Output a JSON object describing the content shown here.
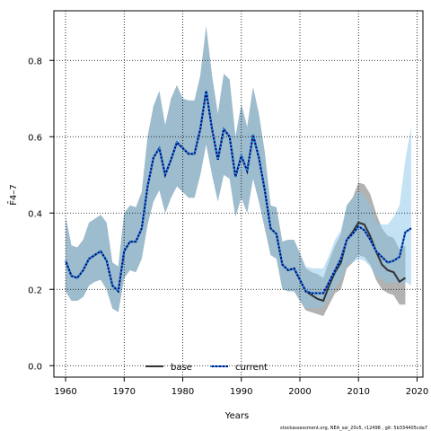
{
  "chart_data": {
    "type": "line",
    "xlabel": "Years",
    "ylabel": "F̄4–7",
    "xlim": [
      1958,
      2021
    ],
    "ylim": [
      -0.03,
      0.93
    ],
    "x_ticks": [
      1960,
      1970,
      1980,
      1990,
      2000,
      2010,
      2020
    ],
    "y_ticks": [
      0.0,
      0.2,
      0.4,
      0.6,
      0.8
    ],
    "y_tick_labels": [
      "0.0",
      "0.2",
      "0.4",
      "0.6",
      "0.8"
    ],
    "grid": true,
    "legend_placement": "bottom-center",
    "colors": {
      "base_line": "#333333",
      "base_band": "#7f7f7f",
      "current_line": "#000080",
      "current_dot": "#1f8fd6",
      "current_band": "#87c5ea"
    },
    "series": [
      {
        "name": "base",
        "line_style": "solid",
        "x": [
          1960,
          1961,
          1962,
          1963,
          1964,
          1965,
          1966,
          1967,
          1968,
          1969,
          1970,
          1971,
          1972,
          1973,
          1974,
          1975,
          1976,
          1977,
          1978,
          1979,
          1980,
          1981,
          1982,
          1983,
          1984,
          1985,
          1986,
          1987,
          1988,
          1989,
          1990,
          1991,
          1992,
          1993,
          1994,
          1995,
          1996,
          1997,
          1998,
          1999,
          2000,
          2001,
          2002,
          2003,
          2004,
          2005,
          2006,
          2007,
          2008,
          2009,
          2010,
          2011,
          2012,
          2013,
          2014,
          2015,
          2016,
          2017,
          2018
        ],
        "values": [
          0.275,
          0.235,
          0.23,
          0.25,
          0.28,
          0.29,
          0.3,
          0.275,
          0.21,
          0.195,
          0.3,
          0.325,
          0.325,
          0.36,
          0.47,
          0.545,
          0.57,
          0.5,
          0.54,
          0.585,
          0.57,
          0.555,
          0.555,
          0.62,
          0.72,
          0.62,
          0.54,
          0.62,
          0.6,
          0.495,
          0.55,
          0.51,
          0.605,
          0.545,
          0.46,
          0.36,
          0.345,
          0.265,
          0.25,
          0.255,
          0.225,
          0.195,
          0.185,
          0.175,
          0.17,
          0.21,
          0.245,
          0.27,
          0.33,
          0.35,
          0.375,
          0.37,
          0.34,
          0.3,
          0.265,
          0.25,
          0.245,
          0.22,
          0.23
        ],
        "upper": [
          0.39,
          0.315,
          0.31,
          0.33,
          0.375,
          0.385,
          0.395,
          0.375,
          0.27,
          0.26,
          0.4,
          0.42,
          0.415,
          0.455,
          0.6,
          0.68,
          0.72,
          0.63,
          0.7,
          0.735,
          0.7,
          0.695,
          0.695,
          0.76,
          0.89,
          0.76,
          0.66,
          0.765,
          0.75,
          0.6,
          0.685,
          0.625,
          0.73,
          0.66,
          0.56,
          0.42,
          0.415,
          0.325,
          0.33,
          0.33,
          0.295,
          0.255,
          0.245,
          0.24,
          0.23,
          0.275,
          0.315,
          0.345,
          0.42,
          0.44,
          0.48,
          0.475,
          0.45,
          0.4,
          0.36,
          0.34,
          0.335,
          0.305,
          0.315
        ],
        "lower": [
          0.195,
          0.17,
          0.17,
          0.18,
          0.21,
          0.22,
          0.225,
          0.2,
          0.15,
          0.14,
          0.23,
          0.25,
          0.245,
          0.28,
          0.37,
          0.43,
          0.46,
          0.4,
          0.44,
          0.47,
          0.455,
          0.44,
          0.44,
          0.5,
          0.58,
          0.5,
          0.43,
          0.5,
          0.49,
          0.39,
          0.44,
          0.4,
          0.49,
          0.43,
          0.36,
          0.29,
          0.28,
          0.2,
          0.195,
          0.195,
          0.17,
          0.145,
          0.14,
          0.135,
          0.13,
          0.16,
          0.19,
          0.2,
          0.255,
          0.27,
          0.29,
          0.285,
          0.265,
          0.225,
          0.2,
          0.19,
          0.185,
          0.16,
          0.16
        ]
      },
      {
        "name": "current",
        "line_style": "dotted",
        "x": [
          1960,
          1961,
          1962,
          1963,
          1964,
          1965,
          1966,
          1967,
          1968,
          1969,
          1970,
          1971,
          1972,
          1973,
          1974,
          1975,
          1976,
          1977,
          1978,
          1979,
          1980,
          1981,
          1982,
          1983,
          1984,
          1985,
          1986,
          1987,
          1988,
          1989,
          1990,
          1991,
          1992,
          1993,
          1994,
          1995,
          1996,
          1997,
          1998,
          1999,
          2000,
          2001,
          2002,
          2003,
          2004,
          2005,
          2006,
          2007,
          2008,
          2009,
          2010,
          2011,
          2012,
          2013,
          2014,
          2015,
          2016,
          2017,
          2018,
          2019
        ],
        "values": [
          0.275,
          0.235,
          0.23,
          0.25,
          0.28,
          0.29,
          0.3,
          0.275,
          0.21,
          0.195,
          0.3,
          0.325,
          0.325,
          0.36,
          0.47,
          0.545,
          0.57,
          0.5,
          0.54,
          0.585,
          0.57,
          0.555,
          0.555,
          0.62,
          0.72,
          0.62,
          0.54,
          0.62,
          0.6,
          0.495,
          0.55,
          0.51,
          0.605,
          0.545,
          0.46,
          0.36,
          0.345,
          0.265,
          0.25,
          0.255,
          0.225,
          0.195,
          0.19,
          0.19,
          0.19,
          0.22,
          0.25,
          0.28,
          0.33,
          0.345,
          0.365,
          0.355,
          0.33,
          0.3,
          0.285,
          0.27,
          0.275,
          0.285,
          0.35,
          0.36
        ],
        "upper": [
          0.39,
          0.315,
          0.31,
          0.33,
          0.375,
          0.385,
          0.395,
          0.375,
          0.27,
          0.26,
          0.4,
          0.42,
          0.415,
          0.455,
          0.6,
          0.68,
          0.72,
          0.63,
          0.7,
          0.735,
          0.7,
          0.695,
          0.695,
          0.76,
          0.89,
          0.76,
          0.66,
          0.765,
          0.75,
          0.6,
          0.685,
          0.625,
          0.73,
          0.66,
          0.56,
          0.42,
          0.415,
          0.325,
          0.33,
          0.33,
          0.295,
          0.26,
          0.255,
          0.255,
          0.255,
          0.29,
          0.33,
          0.355,
          0.42,
          0.435,
          0.46,
          0.445,
          0.42,
          0.375,
          0.37,
          0.37,
          0.39,
          0.42,
          0.54,
          0.625
        ],
        "lower": [
          0.195,
          0.17,
          0.17,
          0.18,
          0.21,
          0.22,
          0.225,
          0.2,
          0.15,
          0.14,
          0.23,
          0.25,
          0.245,
          0.28,
          0.37,
          0.43,
          0.46,
          0.4,
          0.44,
          0.47,
          0.455,
          0.44,
          0.44,
          0.5,
          0.58,
          0.5,
          0.43,
          0.5,
          0.49,
          0.39,
          0.44,
          0.4,
          0.49,
          0.43,
          0.36,
          0.29,
          0.28,
          0.2,
          0.195,
          0.195,
          0.17,
          0.15,
          0.15,
          0.15,
          0.155,
          0.18,
          0.205,
          0.225,
          0.265,
          0.27,
          0.28,
          0.275,
          0.26,
          0.235,
          0.225,
          0.215,
          0.22,
          0.215,
          0.22,
          0.21
        ]
      }
    ]
  },
  "footer": {
    "source_note": "stockassessment.org,  NEA_sai_20v5,  r12498 ,  git: 5b334405cda7"
  }
}
